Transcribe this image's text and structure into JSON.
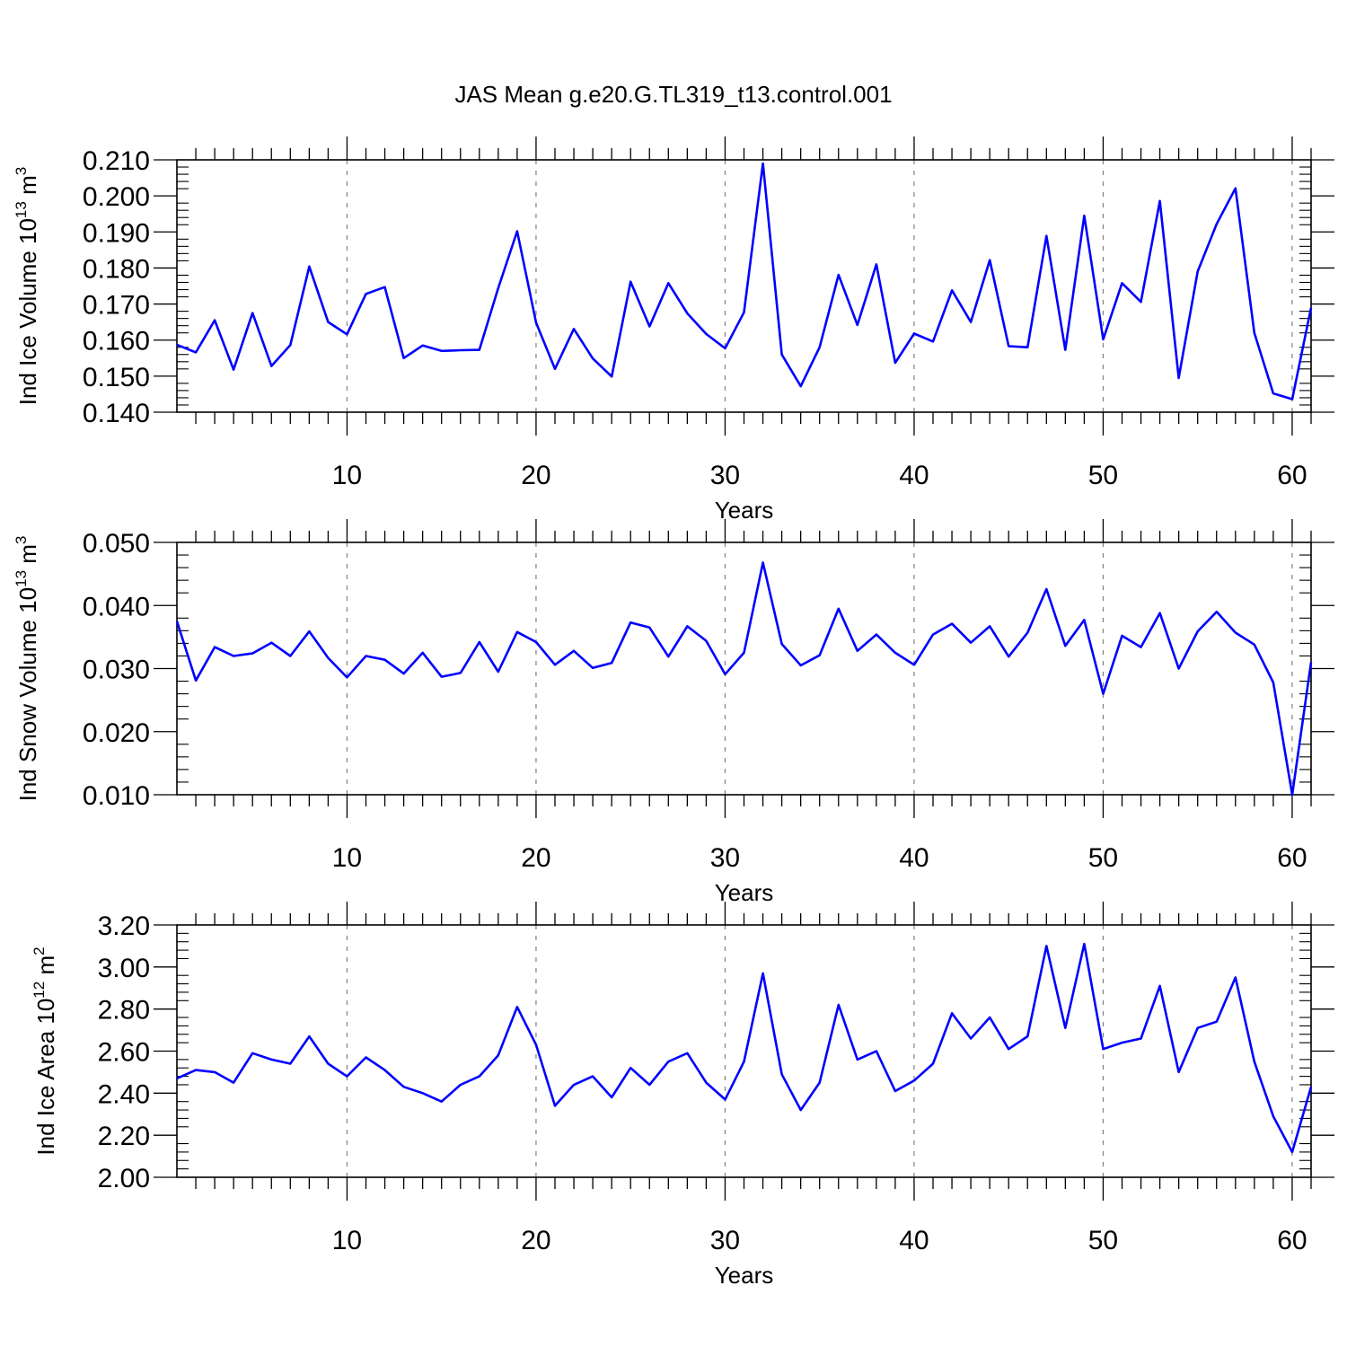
{
  "title": "JAS Mean g.e20.G.TL319_t13.control.001",
  "colors": {
    "line": "#0000ff",
    "axis": "#000000",
    "grid": "#808080"
  },
  "chart_data": [
    {
      "type": "line",
      "xlabel": "Years",
      "ylabel": {
        "main": "Ind Ice Volume 10",
        "exp": "13",
        "unit": "m",
        "unit_exp": "3"
      },
      "xlim": [
        1,
        61
      ],
      "ylim": [
        0.14,
        0.21
      ],
      "xticks": [
        "10",
        "20",
        "30",
        "40",
        "50",
        "60"
      ],
      "yticks": [
        "0.140",
        "0.150",
        "0.160",
        "0.170",
        "0.180",
        "0.190",
        "0.200",
        "0.210"
      ],
      "grid": "x-major dashed",
      "x": [
        1,
        2,
        3,
        4,
        5,
        6,
        7,
        8,
        9,
        10,
        11,
        12,
        13,
        14,
        15,
        16,
        17,
        18,
        19,
        20,
        21,
        22,
        23,
        24,
        25,
        26,
        27,
        28,
        29,
        30,
        31,
        32,
        33,
        34,
        35,
        36,
        37,
        38,
        39,
        40,
        41,
        42,
        43,
        44,
        45,
        46,
        47,
        48,
        49,
        50,
        51,
        52,
        53,
        54,
        55,
        56,
        57,
        58,
        59,
        60,
        61
      ],
      "values": [
        0.1587,
        0.1566,
        0.1655,
        0.1518,
        0.1675,
        0.1528,
        0.1586,
        0.1804,
        0.165,
        0.1616,
        0.1728,
        0.1747,
        0.155,
        0.1585,
        0.157,
        0.1572,
        0.1573,
        0.1744,
        0.1902,
        0.1648,
        0.152,
        0.1631,
        0.1549,
        0.1499,
        0.1762,
        0.1638,
        0.1758,
        0.1674,
        0.1617,
        0.1577,
        0.1677,
        0.209,
        0.156,
        0.1472,
        0.158,
        0.1781,
        0.1642,
        0.181,
        0.1537,
        0.1618,
        0.1596,
        0.1738,
        0.165,
        0.1822,
        0.1583,
        0.158,
        0.1889,
        0.1573,
        0.1945,
        0.1602,
        0.1758,
        0.1706,
        0.1986,
        0.1495,
        0.179,
        0.1922,
        0.2021,
        0.162,
        0.1452,
        0.1436,
        0.169
      ]
    },
    {
      "type": "line",
      "xlabel": "Years",
      "ylabel": {
        "main": "Ind Snow Volume 10",
        "exp": "13",
        "unit": "m",
        "unit_exp": "3"
      },
      "xlim": [
        1,
        61
      ],
      "ylim": [
        0.01,
        0.05
      ],
      "xticks": [
        "10",
        "20",
        "30",
        "40",
        "50",
        "60"
      ],
      "yticks": [
        "0.010",
        "0.020",
        "0.030",
        "0.040",
        "0.050"
      ],
      "grid": "x-major dashed",
      "x": [
        1,
        2,
        3,
        4,
        5,
        6,
        7,
        8,
        9,
        10,
        11,
        12,
        13,
        14,
        15,
        16,
        17,
        18,
        19,
        20,
        21,
        22,
        23,
        24,
        25,
        26,
        27,
        28,
        29,
        30,
        31,
        32,
        33,
        34,
        35,
        36,
        37,
        38,
        39,
        40,
        41,
        42,
        43,
        44,
        45,
        46,
        47,
        48,
        49,
        50,
        51,
        52,
        53,
        54,
        55,
        56,
        57,
        58,
        59,
        60,
        61
      ],
      "values": [
        0.0375,
        0.0281,
        0.0334,
        0.032,
        0.0324,
        0.0341,
        0.032,
        0.0359,
        0.0317,
        0.0286,
        0.032,
        0.0314,
        0.0292,
        0.0325,
        0.0287,
        0.0293,
        0.0342,
        0.0295,
        0.0358,
        0.0342,
        0.0306,
        0.0328,
        0.0301,
        0.0309,
        0.0373,
        0.0365,
        0.0319,
        0.0367,
        0.0344,
        0.0291,
        0.0325,
        0.0468,
        0.0339,
        0.0305,
        0.0321,
        0.0395,
        0.0328,
        0.0354,
        0.0325,
        0.0306,
        0.0354,
        0.0371,
        0.0341,
        0.0367,
        0.0319,
        0.0357,
        0.0426,
        0.0336,
        0.0377,
        0.026,
        0.0352,
        0.0334,
        0.0388,
        0.03,
        0.0359,
        0.039,
        0.0357,
        0.0338,
        0.0278,
        0.01,
        0.031
      ]
    },
    {
      "type": "line",
      "xlabel": "Years",
      "ylabel": {
        "main": "Ind Ice Area 10",
        "exp": "12",
        "unit": "m",
        "unit_exp": "2"
      },
      "xlim": [
        1,
        61
      ],
      "ylim": [
        2.0,
        3.2
      ],
      "xticks": [
        "10",
        "20",
        "30",
        "40",
        "50",
        "60"
      ],
      "yticks": [
        "2.00",
        "2.20",
        "2.40",
        "2.60",
        "2.80",
        "3.00",
        "3.20"
      ],
      "grid": "x-major dashed",
      "x": [
        1,
        2,
        3,
        4,
        5,
        6,
        7,
        8,
        9,
        10,
        11,
        12,
        13,
        14,
        15,
        16,
        17,
        18,
        19,
        20,
        21,
        22,
        23,
        24,
        25,
        26,
        27,
        28,
        29,
        30,
        31,
        32,
        33,
        34,
        35,
        36,
        37,
        38,
        39,
        40,
        41,
        42,
        43,
        44,
        45,
        46,
        47,
        48,
        49,
        50,
        51,
        52,
        53,
        54,
        55,
        56,
        57,
        58,
        59,
        60,
        61
      ],
      "values": [
        2.47,
        2.51,
        2.5,
        2.45,
        2.59,
        2.56,
        2.54,
        2.67,
        2.54,
        2.48,
        2.57,
        2.51,
        2.43,
        2.4,
        2.36,
        2.44,
        2.48,
        2.58,
        2.81,
        2.63,
        2.34,
        2.44,
        2.48,
        2.38,
        2.52,
        2.44,
        2.55,
        2.59,
        2.45,
        2.37,
        2.55,
        2.97,
        2.49,
        2.32,
        2.45,
        2.82,
        2.56,
        2.6,
        2.41,
        2.46,
        2.54,
        2.78,
        2.66,
        2.76,
        2.61,
        2.67,
        3.1,
        2.71,
        3.11,
        2.61,
        2.64,
        2.66,
        2.91,
        2.5,
        2.71,
        2.74,
        2.95,
        2.55,
        2.29,
        2.12,
        2.43
      ]
    }
  ]
}
